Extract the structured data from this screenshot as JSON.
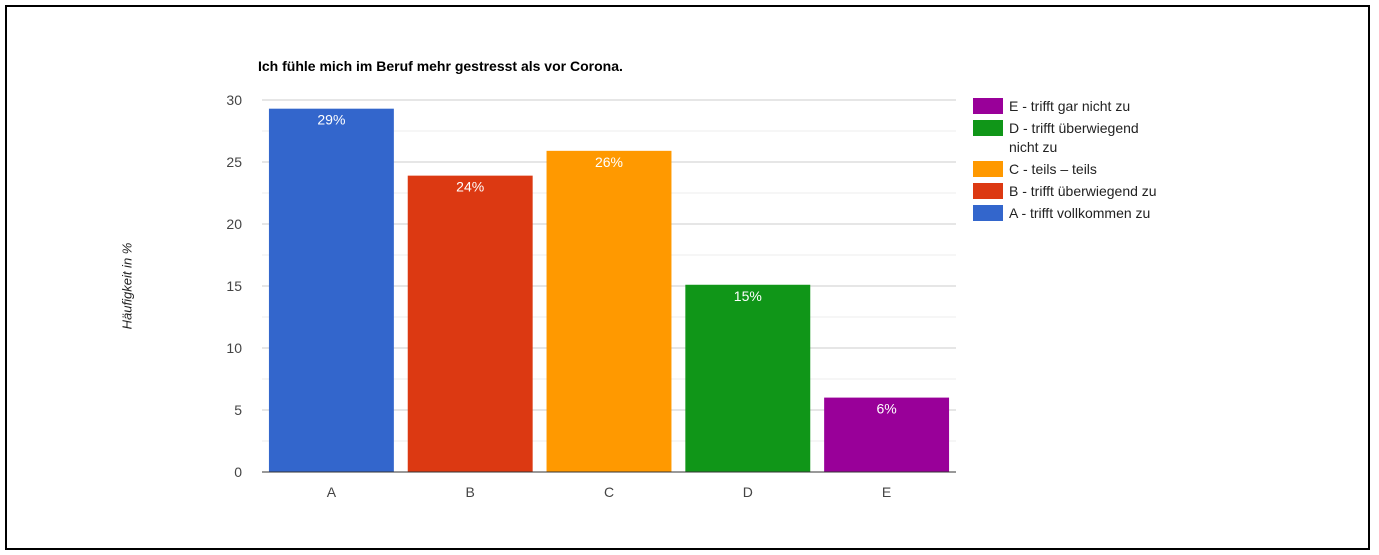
{
  "chart_data": {
    "type": "bar",
    "title": "Ich fühle mich im Beruf mehr gestresst als vor Corona.",
    "xlabel": "",
    "ylabel": "Häufigkeit in %",
    "ylim": [
      0,
      30
    ],
    "yticks": [
      0,
      5,
      10,
      15,
      20,
      25,
      30
    ],
    "grid": true,
    "legend_position": "right",
    "categories": [
      "A",
      "B",
      "C",
      "D",
      "E"
    ],
    "values": [
      29.3,
      23.9,
      25.9,
      15.1,
      6.0
    ],
    "data_labels": [
      "29%",
      "24%",
      "26%",
      "15%",
      "6%"
    ],
    "colors": [
      "#3366cc",
      "#dc3912",
      "#ff9900",
      "#109618",
      "#990099"
    ],
    "legend": [
      {
        "label": "E - trifft gar nicht zu",
        "color": "#990099"
      },
      {
        "label": "D - trifft überwiegend nicht zu",
        "color": "#109618"
      },
      {
        "label": "C - teils – teils",
        "color": "#ff9900"
      },
      {
        "label": "B - trifft überwiegend zu",
        "color": "#dc3912"
      },
      {
        "label": "A - trifft vollkommen zu",
        "color": "#3366cc"
      }
    ]
  }
}
